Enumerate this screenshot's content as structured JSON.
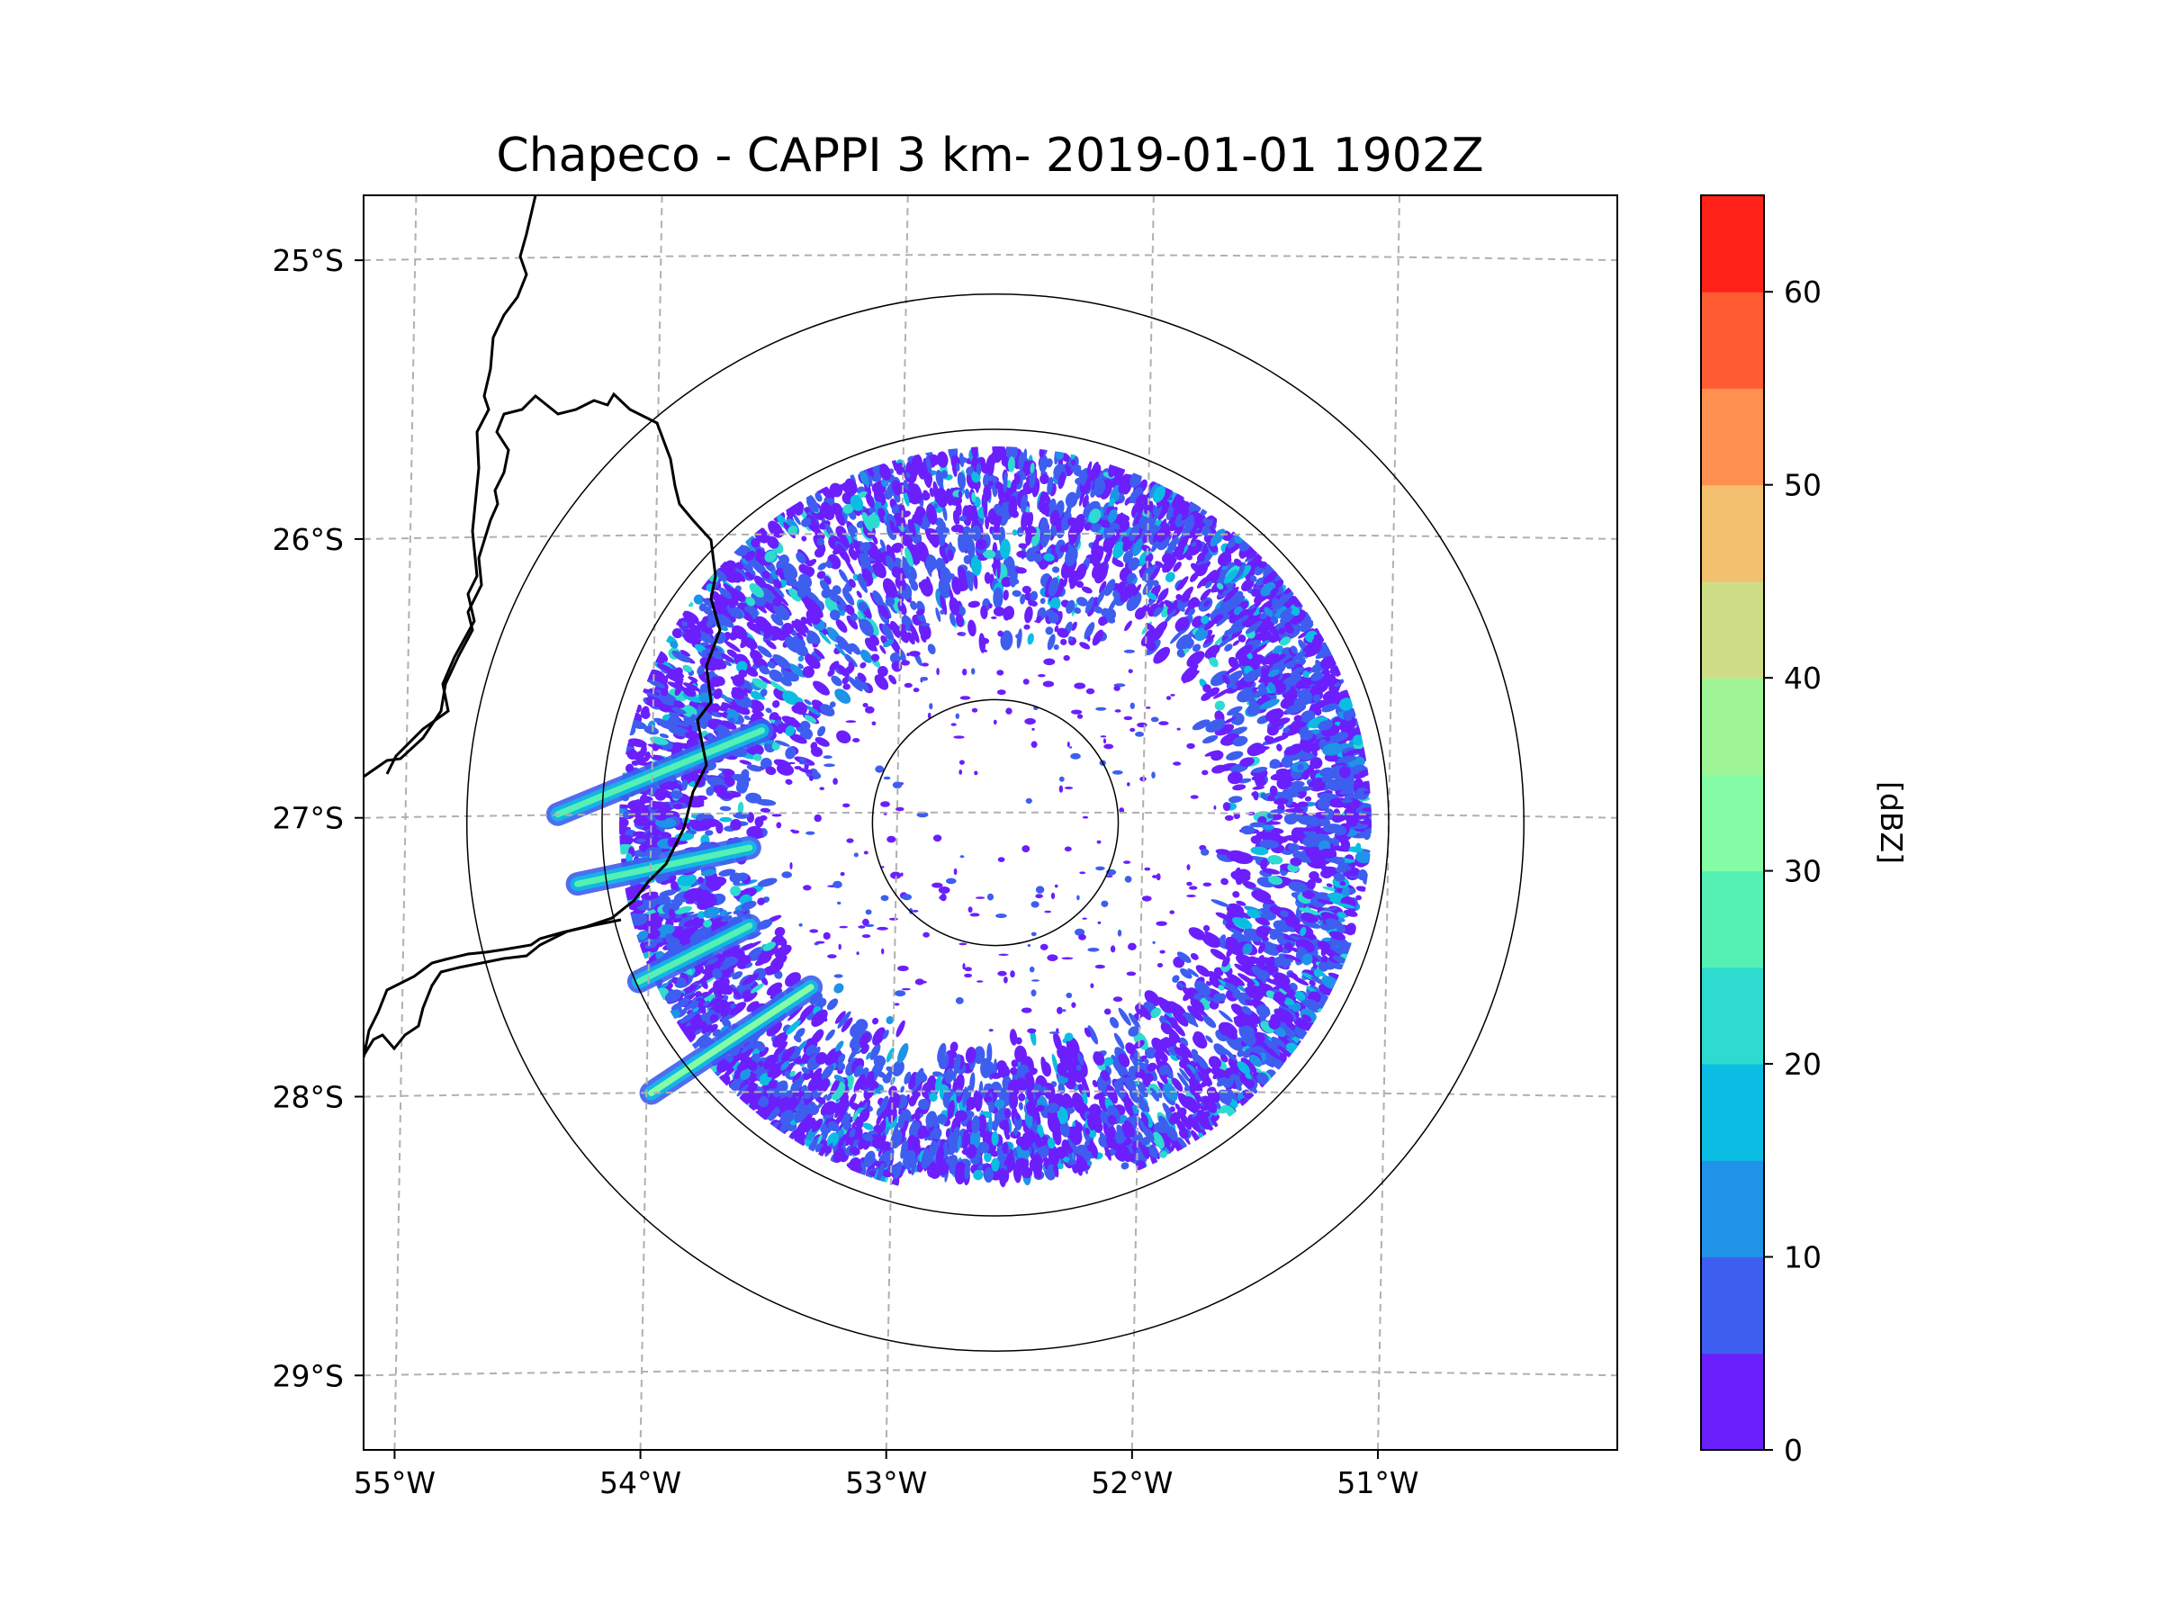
{
  "chart_data": {
    "type": "heatmap",
    "title": "Chapeco - CAPPI 3 km- 2019-01-01 1902Z",
    "radar": {
      "site": "Chapeco",
      "product": "CAPPI 3 km",
      "center_lon": -52.6,
      "center_lat": -27.03
    },
    "x_ticks": [
      {
        "value": -55,
        "label": "55°W"
      },
      {
        "value": -54,
        "label": "54°W"
      },
      {
        "value": -53,
        "label": "53°W"
      },
      {
        "value": -52,
        "label": "52°W"
      },
      {
        "value": -51,
        "label": "51°W"
      }
    ],
    "y_ticks": [
      {
        "value": -25,
        "label": "25°S"
      },
      {
        "value": -26,
        "label": "26°S"
      },
      {
        "value": -27,
        "label": "27°S"
      },
      {
        "value": -28,
        "label": "28°S"
      },
      {
        "value": -29,
        "label": "29°S"
      }
    ],
    "xlim": [
      -55.17,
      -50.07
    ],
    "ylim": [
      -29.28,
      -24.78
    ],
    "range_rings_deg": [
      0.5,
      1.6,
      2.15
    ],
    "colorbar": {
      "label": "[dBZ]",
      "min": 0,
      "max": 65,
      "step": 5,
      "ticks": [
        {
          "value": 0,
          "label": "0"
        },
        {
          "value": 10,
          "label": "10"
        },
        {
          "value": 20,
          "label": "20"
        },
        {
          "value": 30,
          "label": "30"
        },
        {
          "value": 40,
          "label": "40"
        },
        {
          "value": 50,
          "label": "50"
        },
        {
          "value": 60,
          "label": "60"
        }
      ],
      "colors": [
        "#6b1ffc",
        "#3e5ef0",
        "#1e93e8",
        "#0cbde3",
        "#2ddbd0",
        "#55f0b4",
        "#84fca6",
        "#9ff596",
        "#cfdd86",
        "#f2c06e",
        "#ff9050",
        "#ff5c34",
        "#ff2219"
      ]
    },
    "echo_regions": [
      {
        "name": "north-arc",
        "az": [
          -80,
          30
        ],
        "r": [
          0.68,
          1.53
        ],
        "max_dbz": 25
      },
      {
        "name": "east-arc",
        "az": [
          30,
          160
        ],
        "r": [
          0.9,
          1.53
        ],
        "max_dbz": 25
      },
      {
        "name": "south-arc",
        "az": [
          160,
          195
        ],
        "r": [
          0.85,
          1.45
        ],
        "max_dbz": 20
      },
      {
        "name": "west-arc",
        "az": [
          195,
          280
        ],
        "r": [
          0.9,
          1.53
        ],
        "max_dbz": 25
      },
      {
        "name": "ray-1",
        "lon": [
          -54.38,
          -53.55
        ],
        "lat": [
          -27.0,
          -26.7
        ],
        "max_dbz": 30
      },
      {
        "name": "ray-2",
        "lon": [
          -54.3,
          -53.6
        ],
        "lat": [
          -27.25,
          -27.12
        ],
        "max_dbz": 30
      },
      {
        "name": "ray-3",
        "lon": [
          -54.05,
          -53.6
        ],
        "lat": [
          -27.6,
          -27.4
        ],
        "max_dbz": 30
      },
      {
        "name": "ray-4",
        "lon": [
          -54.0,
          -53.35
        ],
        "lat": [
          -28.0,
          -27.62
        ],
        "max_dbz": 35
      }
    ]
  }
}
